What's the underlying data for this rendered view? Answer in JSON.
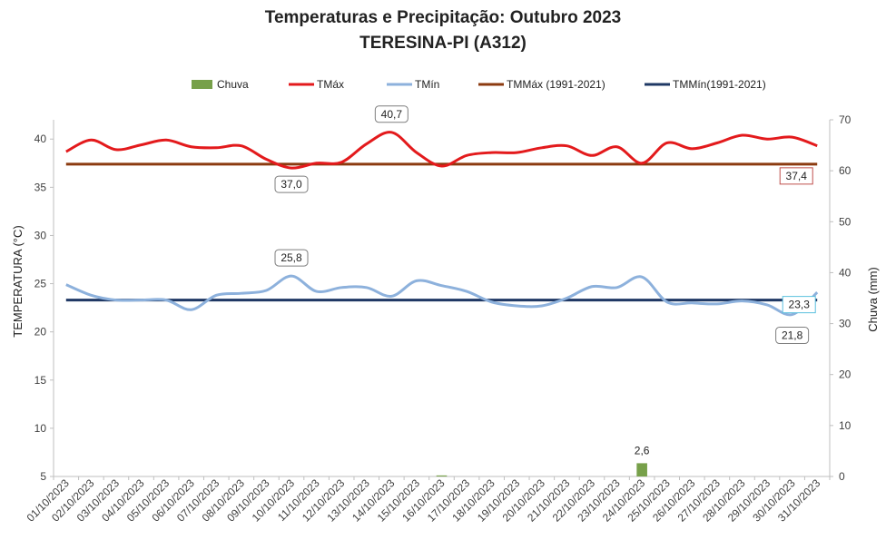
{
  "chart_data": {
    "type": "line",
    "title": "Temperaturas e Precipitação: Outubro 2023",
    "subtitle": "TERESINA-PI (A312)",
    "ylabel": "TEMPERATURA (°C)",
    "y2label": "Chuva (mm)",
    "ylim": [
      5,
      42
    ],
    "y2lim": [
      0,
      70
    ],
    "yticks": [
      "5",
      "10",
      "15",
      "20",
      "25",
      "30",
      "35",
      "40"
    ],
    "y2ticks": [
      "0",
      "10",
      "20",
      "30",
      "40",
      "50",
      "60",
      "70"
    ],
    "categories": [
      "01/10/2023",
      "02/10/2023",
      "03/10/2023",
      "04/10/2023",
      "05/10/2023",
      "06/10/2023",
      "07/10/2023",
      "08/10/2023",
      "09/10/2023",
      "10/10/2023",
      "11/10/2023",
      "12/10/2023",
      "13/10/2023",
      "14/10/2023",
      "15/10/2023",
      "16/10/2023",
      "17/10/2023",
      "18/10/2023",
      "19/10/2023",
      "20/10/2023",
      "21/10/2023",
      "22/10/2023",
      "23/10/2023",
      "24/10/2023",
      "25/10/2023",
      "26/10/2023",
      "27/10/2023",
      "28/10/2023",
      "29/10/2023",
      "30/10/2023",
      "31/10/2023"
    ],
    "legend": [
      "Chuva",
      "TMáx",
      "TMín",
      "TMMáx (1991-2021)",
      "TMMín(1991-2021)"
    ],
    "series": [
      {
        "name": "TMáx",
        "color": "#e31a1c",
        "values": [
          38.7,
          39.9,
          38.9,
          39.4,
          39.9,
          39.2,
          39.1,
          39.3,
          37.9,
          37.0,
          37.5,
          37.6,
          39.5,
          40.7,
          38.6,
          37.2,
          38.3,
          38.6,
          38.6,
          39.1,
          39.3,
          38.3,
          39.2,
          37.5,
          39.6,
          39.0,
          39.6,
          40.4,
          40.0,
          40.2,
          39.3
        ]
      },
      {
        "name": "TMín",
        "color": "#8db1dc",
        "values": [
          24.9,
          23.8,
          23.3,
          23.3,
          23.3,
          22.3,
          23.8,
          24.0,
          24.3,
          25.8,
          24.2,
          24.6,
          24.6,
          23.7,
          25.3,
          24.8,
          24.2,
          23.1,
          22.7,
          22.7,
          23.5,
          24.7,
          24.6,
          25.7,
          23.1,
          23.0,
          22.9,
          23.2,
          22.8,
          21.8,
          24.1
        ]
      },
      {
        "name": "TMMáx (1991-2021)",
        "color": "#8b3a0f",
        "value": 37.4
      },
      {
        "name": "TMMín(1991-2021)",
        "color": "#1f3864",
        "value": 23.3
      }
    ],
    "rain": {
      "name": "Chuva",
      "color": "#77a04a",
      "values": [
        0,
        0,
        0,
        0,
        0,
        0,
        0,
        0,
        0,
        0,
        0,
        0,
        0,
        0,
        0,
        0.2,
        0,
        0,
        0,
        0,
        0,
        0,
        0,
        2.6,
        0,
        0,
        0,
        0,
        0,
        0,
        0
      ]
    },
    "annotations": [
      {
        "text": "40,7",
        "index": 13,
        "value": 40.7,
        "series": "TMáx"
      },
      {
        "text": "37,0",
        "index": 9,
        "value": 37.0,
        "series": "TMáx"
      },
      {
        "text": "25,8",
        "index": 9,
        "value": 25.8,
        "series": "TMín"
      },
      {
        "text": "21,8",
        "index": 29,
        "value": 21.8,
        "series": "TMín"
      },
      {
        "text": "2,6",
        "index": 23,
        "value": 2.6,
        "series": "Chuva"
      },
      {
        "text": "37,4",
        "index": 30,
        "value": 37.4,
        "series": "TMMáx (1991-2021)"
      },
      {
        "text": "23,3",
        "index": 30,
        "value": 23.3,
        "series": "TMMín(1991-2021)"
      }
    ]
  }
}
